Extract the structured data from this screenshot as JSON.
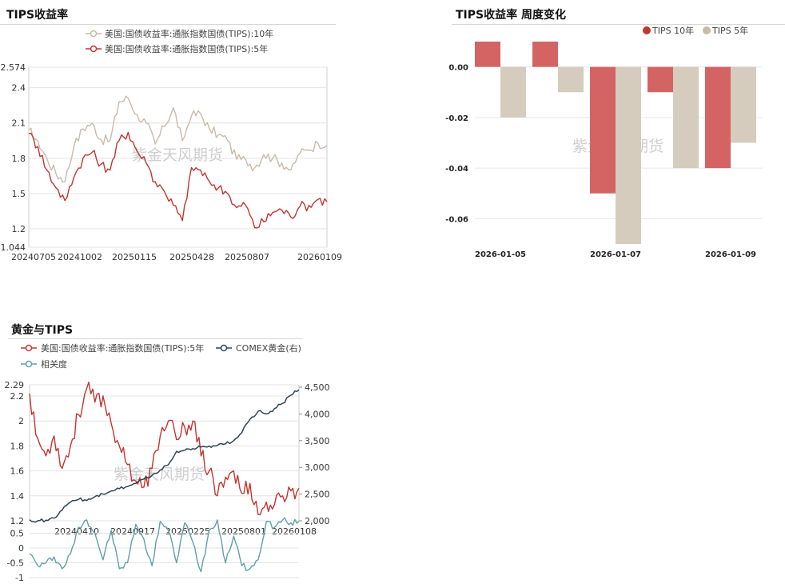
{
  "panels": {
    "tips_yield": {
      "title": "TIPS收益率"
    },
    "weekly_change": {
      "title": "TIPS收益率 周度变化"
    },
    "gold_tips": {
      "title": "黄金与TIPS"
    }
  },
  "watermark": "紫金天风期货",
  "chart_data": [
    {
      "type": "line",
      "title": "TIPS收益率",
      "x_ticks": [
        "20240705",
        "20241002",
        "20250115",
        "20250428",
        "20250807",
        "20260109"
      ],
      "ylim": [
        1.044,
        2.574
      ],
      "y_ticks": [
        "1.044",
        "1.2",
        "1.5",
        "1.8",
        "2.1",
        "2.4",
        "2.574"
      ],
      "series": [
        {
          "name": "美国:国债收益率:通胀指数国债(TIPS):10年",
          "color": "#c8bba8",
          "values": [
            2.04,
            1.95,
            1.8,
            1.67,
            1.6,
            1.9,
            2.05,
            2.1,
            1.96,
            1.95,
            2.28,
            2.31,
            2.17,
            2.1,
            1.92,
            2.07,
            2.23,
            1.95,
            2.16,
            2.18,
            2.05,
            2.0,
            1.95,
            1.79,
            1.79,
            1.72,
            1.83,
            1.8,
            1.76,
            1.7,
            1.84,
            1.87,
            1.93,
            1.91
          ]
        },
        {
          "name": "美国:国债收益率:通胀指数国债(TIPS):5年",
          "color": "#c23531",
          "values": [
            2.01,
            1.9,
            1.7,
            1.55,
            1.44,
            1.64,
            1.8,
            1.85,
            1.75,
            1.7,
            1.95,
            2.02,
            1.86,
            1.76,
            1.6,
            1.52,
            1.4,
            1.27,
            1.72,
            1.7,
            1.6,
            1.55,
            1.5,
            1.38,
            1.4,
            1.21,
            1.26,
            1.34,
            1.36,
            1.3,
            1.39,
            1.4,
            1.45,
            1.43
          ]
        }
      ]
    },
    {
      "type": "bar",
      "title": "TIPS收益率 周度变化",
      "categories": [
        "2026-01-05",
        "",
        "2026-01-07",
        "",
        "2026-01-09"
      ],
      "y_ticks": [
        "0.00",
        "-0.02",
        "-0.04",
        "-0.06"
      ],
      "ylim": [
        -0.07,
        0.01
      ],
      "legend_position": "top-right",
      "series": [
        {
          "name": "TIPS 10年",
          "color": "#d46464",
          "values": [
            0.01,
            0.01,
            -0.05,
            -0.01,
            -0.04
          ]
        },
        {
          "name": "TIPS 5年",
          "color": "#d5ccbe",
          "values": [
            -0.02,
            -0.01,
            -0.07,
            -0.04,
            -0.03
          ]
        }
      ]
    },
    {
      "type": "line",
      "title": "黄金与TIPS",
      "x_ticks": [
        "20240410",
        "20240917",
        "20250225",
        "20250801",
        "20260108"
      ],
      "ylim_left": [
        1.2,
        2.29
      ],
      "y_ticks_left": [
        "1.2",
        "1.4",
        "1.6",
        "1.8",
        "2",
        "2.2",
        "2.29"
      ],
      "ylim_right": [
        2000,
        4500
      ],
      "y_ticks_right": [
        "2,000",
        "2,500",
        "3,000",
        "3,500",
        "4,000",
        "4,500"
      ],
      "series": [
        {
          "name": "美国:国债收益率:通胀指数国债(TIPS):5年",
          "axis": "left",
          "color": "#c23531",
          "values": [
            2.22,
            1.86,
            1.72,
            1.88,
            1.62,
            1.8,
            2.05,
            2.26,
            2.15,
            2.2,
            1.98,
            1.8,
            1.65,
            1.52,
            1.47,
            1.62,
            1.88,
            2.0,
            1.85,
            1.95,
            2.0,
            1.72,
            1.6,
            1.4,
            1.55,
            1.6,
            1.42,
            1.5,
            1.25,
            1.35,
            1.33,
            1.4,
            1.44,
            1.46
          ]
        },
        {
          "name": "COMEX黄金(右)",
          "axis": "right",
          "color": "#2f4554",
          "values": [
            2020,
            2000,
            2010,
            2050,
            2200,
            2350,
            2400,
            2380,
            2450,
            2500,
            2560,
            2600,
            2640,
            2700,
            2780,
            2850,
            2950,
            3050,
            3300,
            3320,
            3350,
            3380,
            3400,
            3410,
            3440,
            3500,
            3650,
            3900,
            4050,
            4000,
            4100,
            4200,
            4350,
            4450
          ]
        },
        {
          "name": "相关度",
          "axis": "lower",
          "color": "#61a0a8",
          "ylim": [
            -1,
            1
          ],
          "y_ticks": [
            "-1",
            "-0.5",
            "0",
            "0.5"
          ],
          "values": [
            -0.2,
            -0.6,
            -0.5,
            -0.3,
            -0.7,
            -0.2,
            0.7,
            0.95,
            0.5,
            -0.4,
            0.6,
            -0.7,
            -0.5,
            0.8,
            0.3,
            -0.6,
            0.9,
            0.6,
            -0.5,
            0.85,
            0.2,
            -0.8,
            0.6,
            0.95,
            -0.5,
            0.4,
            -0.6,
            -0.7,
            -0.4,
            0.9,
            0.7,
            0.95,
            0.85,
            0.9
          ]
        }
      ]
    }
  ]
}
